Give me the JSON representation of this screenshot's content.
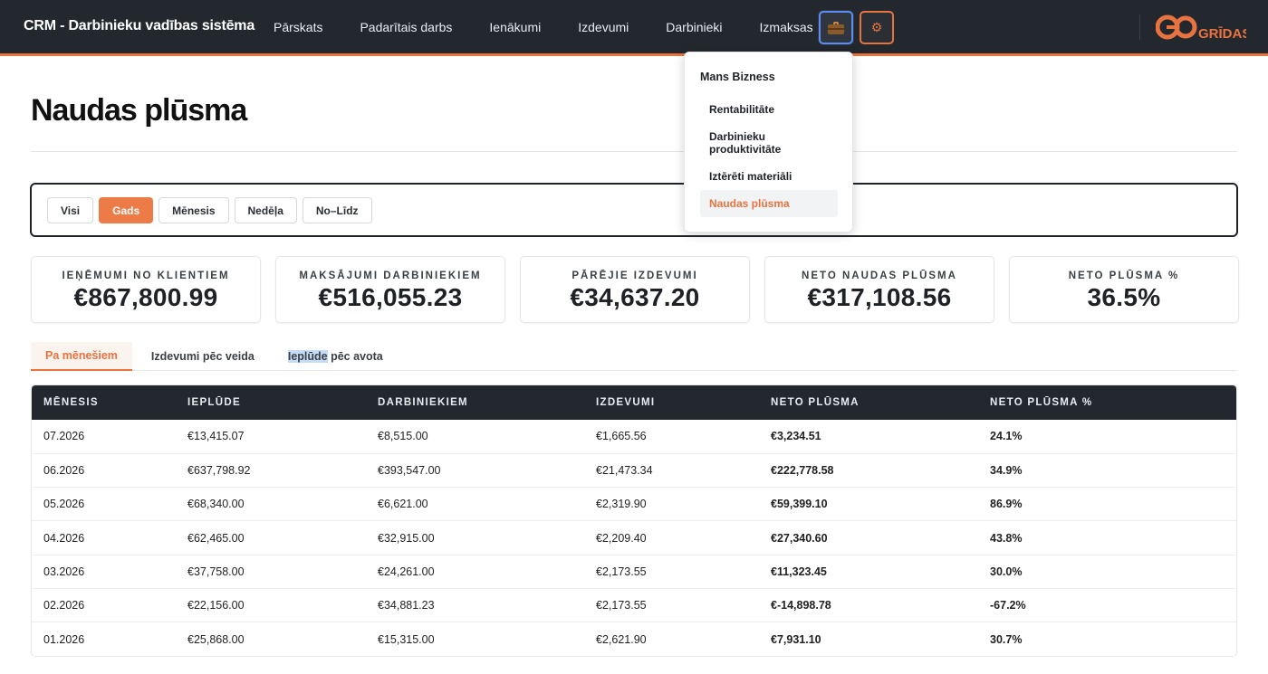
{
  "header": {
    "brand": "CRM - Darbinieku vadības sistēma",
    "nav": [
      "Pārskats",
      "Padarītais darbs",
      "Ienākumi",
      "Izdevumi",
      "Darbinieki",
      "Izmaksas"
    ],
    "briefcase_icon": "briefcase-icon",
    "settings_icon": "gear-icon",
    "logo_text": "GRĪDAS",
    "accent": "#e8733f"
  },
  "page": {
    "title": "Naudas plūsma"
  },
  "filters": {
    "items": [
      "Visi",
      "Gads",
      "Mēnesis",
      "Nedēļa",
      "No–Līdz"
    ],
    "active": "Gads"
  },
  "cards": [
    {
      "label": "Ieņēmumi no klientiem",
      "value": "€867,800.99"
    },
    {
      "label": "Maksājumi darbiniekiem",
      "value": "€516,055.23"
    },
    {
      "label": "Pārējie izdevumi",
      "value": "€34,637.20"
    },
    {
      "label": "Neto naudas plūsma",
      "value": "€317,108.56"
    },
    {
      "label": "Neto plūsma %",
      "value": "36.5%"
    }
  ],
  "tabs": {
    "items": [
      "Pa mēnešiem",
      "Izdevumi pēc veida",
      "Ieplūde pēc avota"
    ],
    "active": "Pa mēnešiem",
    "third_highlight": "Ieplūde",
    "third_rest": " pēc avota"
  },
  "table": {
    "headers": [
      "Mēnesis",
      "Ieplūde",
      "Darbiniekiem",
      "Izdevumi",
      "Neto plūsma",
      "Neto plūsma %"
    ],
    "rows": [
      [
        "07.2026",
        "€13,415.07",
        "€8,515.00",
        "€1,665.56",
        "€3,234.51",
        "24.1%"
      ],
      [
        "06.2026",
        "€637,798.92",
        "€393,547.00",
        "€21,473.34",
        "€222,778.58",
        "34.9%"
      ],
      [
        "05.2026",
        "€68,340.00",
        "€6,621.00",
        "€2,319.90",
        "€59,399.10",
        "86.9%"
      ],
      [
        "04.2026",
        "€62,465.00",
        "€32,915.00",
        "€2,209.40",
        "€27,340.60",
        "43.8%"
      ],
      [
        "03.2026",
        "€37,758.00",
        "€24,261.00",
        "€2,173.55",
        "€11,323.45",
        "30.0%"
      ],
      [
        "02.2026",
        "€22,156.00",
        "€34,881.23",
        "€2,173.55",
        "€-14,898.78",
        "-67.2%"
      ],
      [
        "01.2026",
        "€25,868.00",
        "€15,315.00",
        "€2,621.90",
        "€7,931.10",
        "30.7%"
      ]
    ]
  },
  "dropdown": {
    "heading": "Mans Bizness",
    "items": [
      "Rentabilitāte",
      "Darbinieku produktivitāte",
      "Iztērēti materiāli",
      "Naudas plūsma"
    ],
    "active": "Naudas plūsma"
  }
}
